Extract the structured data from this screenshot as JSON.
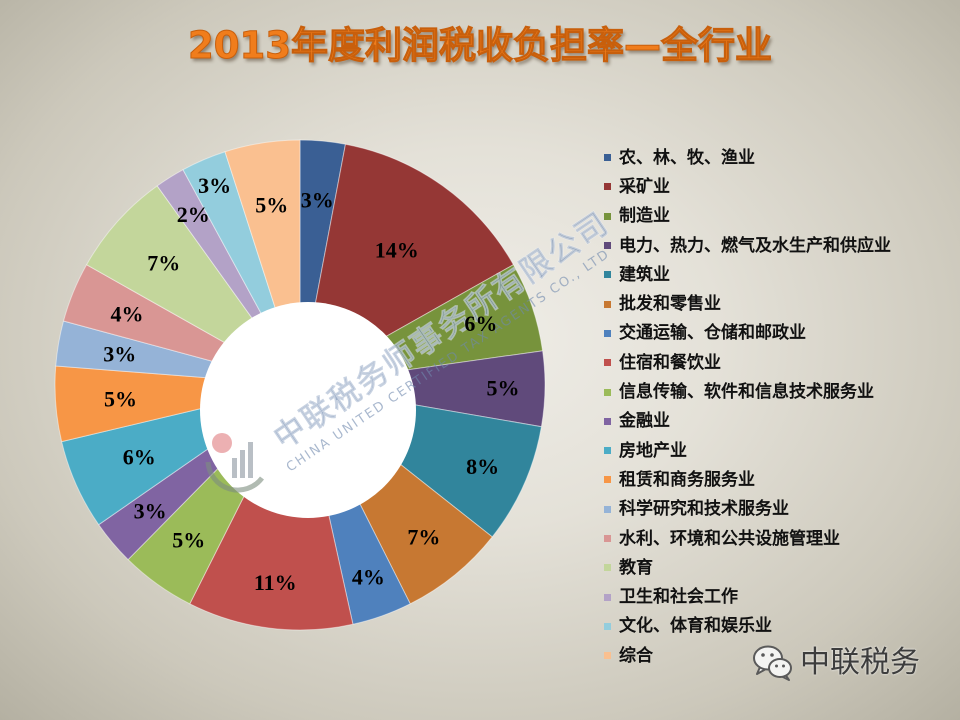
{
  "chart_data": {
    "type": "pie",
    "donut": true,
    "title": "2013年度利润税收负担率—全行业",
    "categories": [
      "农、林、牧、渔业",
      "采矿业",
      "制造业",
      "电力、热力、燃气及水生产和供应业",
      "建筑业",
      "批发和零售业",
      "交通运输、仓储和邮政业",
      "住宿和餐饮业",
      "信息传输、软件和信息技术服务业",
      "金融业",
      "房地产业",
      "租赁和商务服务业",
      "科学研究和技术服务业",
      "水利、环境和公共设施管理业",
      "教育",
      "卫生和社会工作",
      "文化、体育和娱乐业",
      "综合"
    ],
    "values": [
      3,
      14,
      6,
      5,
      8,
      7,
      4,
      11,
      5,
      3,
      6,
      5,
      3,
      4,
      7,
      2,
      3,
      5
    ],
    "data_labels": [
      "3%",
      "14%",
      "6%",
      "5%",
      "8%",
      "7%",
      "4%",
      "11%",
      "5%",
      "3%",
      "6%",
      "5%",
      "3%",
      "4%",
      "7%",
      "2%",
      "3%",
      "5%"
    ],
    "colors": [
      "#3A5F94",
      "#953735",
      "#77933C",
      "#604A7B",
      "#31859C",
      "#C77832",
      "#4F81BD",
      "#C0504D",
      "#9BBB59",
      "#8064A2",
      "#4BACC6",
      "#F79646",
      "#95B3D7",
      "#D99694",
      "#C3D69B",
      "#B3A2C7",
      "#93CDDD",
      "#FAC090"
    ],
    "legend": "right"
  },
  "watermark": {
    "name_cn": "中联税务师事务所有限公司",
    "name_en": "CHINA UNITED CERTIFIED TAX AGENTS CO., LTD"
  },
  "footer": {
    "icon": "wechat-icon",
    "text": "中联税务"
  }
}
